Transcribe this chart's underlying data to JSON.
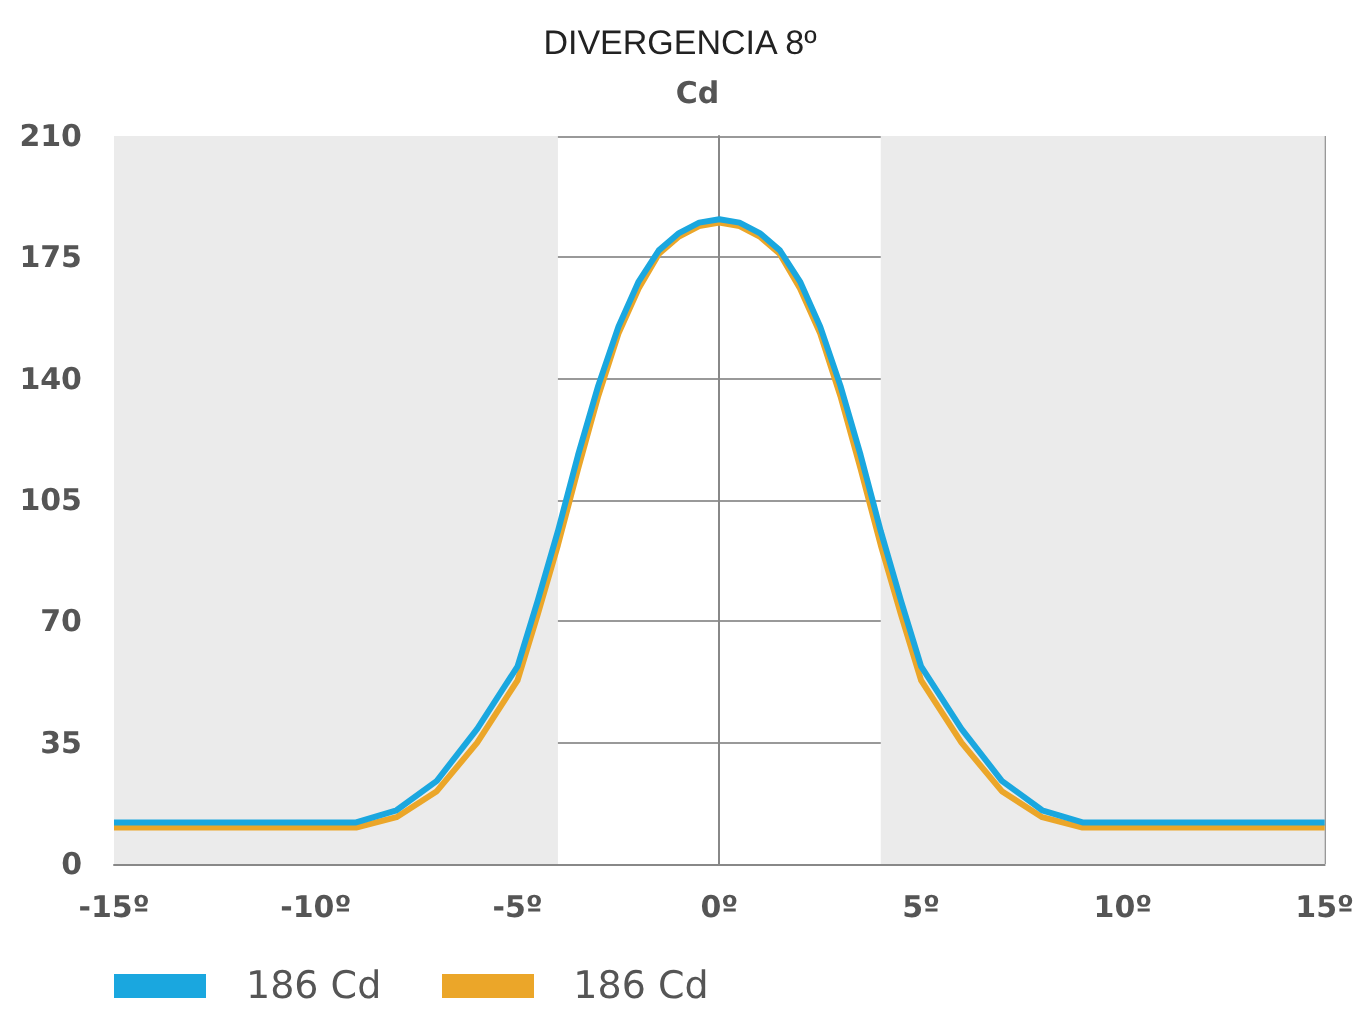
{
  "chart_data": {
    "type": "line",
    "title": "DIVERGENCIA 8º",
    "ylabel": "Cd",
    "xlim": [
      -15,
      15
    ],
    "xticks": [
      {
        "value": -15,
        "label": "-15º"
      },
      {
        "value": -10,
        "label": "-10º"
      },
      {
        "value": -5,
        "label": "-5º"
      },
      {
        "value": 0,
        "label": "0º"
      },
      {
        "value": 5,
        "label": "5º"
      },
      {
        "value": 10,
        "label": "10º"
      },
      {
        "value": 15,
        "label": "15º"
      }
    ],
    "ylim": [
      0,
      210
    ],
    "yticks": [
      0,
      35,
      70,
      105,
      140,
      175,
      210
    ],
    "grid": true,
    "legend": "bottom",
    "marker": "none",
    "line_style": "solid",
    "bands": [
      {
        "axis": "x",
        "from": -15,
        "to": -4,
        "color": "#ebebeb"
      },
      {
        "axis": "x",
        "from": 4,
        "to": 15,
        "color": "#ebebeb"
      }
    ],
    "series": [
      {
        "name": "186 Cd",
        "color": "#1aa7df",
        "x": [
          -15,
          -12,
          -9,
          -8,
          -7,
          -6,
          -5,
          -4.5,
          -4,
          -3.5,
          -3,
          -2.5,
          -2,
          -1.5,
          -1,
          -0.5,
          0,
          0.5,
          1,
          1.5,
          2,
          2.5,
          3,
          3.5,
          4,
          4.5,
          5,
          6,
          7,
          8,
          9,
          12,
          15
        ],
        "values": [
          12,
          12,
          12,
          15.5,
          24,
          39,
          57,
          76,
          96,
          118,
          138,
          155,
          168,
          177,
          182,
          185,
          186,
          185,
          182,
          177,
          168,
          155,
          138,
          118,
          96,
          76,
          57,
          39,
          24,
          15.5,
          12,
          12,
          12
        ]
      },
      {
        "name": "186 Cd",
        "color": "#eba629",
        "x": [
          -15,
          -12,
          -9,
          -8,
          -7,
          -6,
          -5,
          -4.5,
          -4,
          -3.5,
          -3,
          -2.5,
          -2,
          -1.5,
          -1,
          -0.5,
          0,
          0.5,
          1,
          1.5,
          2,
          2.5,
          3,
          3.5,
          4,
          4.5,
          5,
          6,
          7,
          8,
          9,
          12,
          15
        ],
        "values": [
          10.5,
          10.5,
          10.5,
          13.5,
          21,
          35,
          53,
          72,
          92,
          114,
          135,
          153,
          166,
          176,
          181,
          184,
          185,
          184,
          181,
          176,
          166,
          153,
          135,
          114,
          92,
          72,
          53,
          35,
          21,
          13.5,
          10.5,
          10.5,
          10.5
        ]
      }
    ]
  }
}
